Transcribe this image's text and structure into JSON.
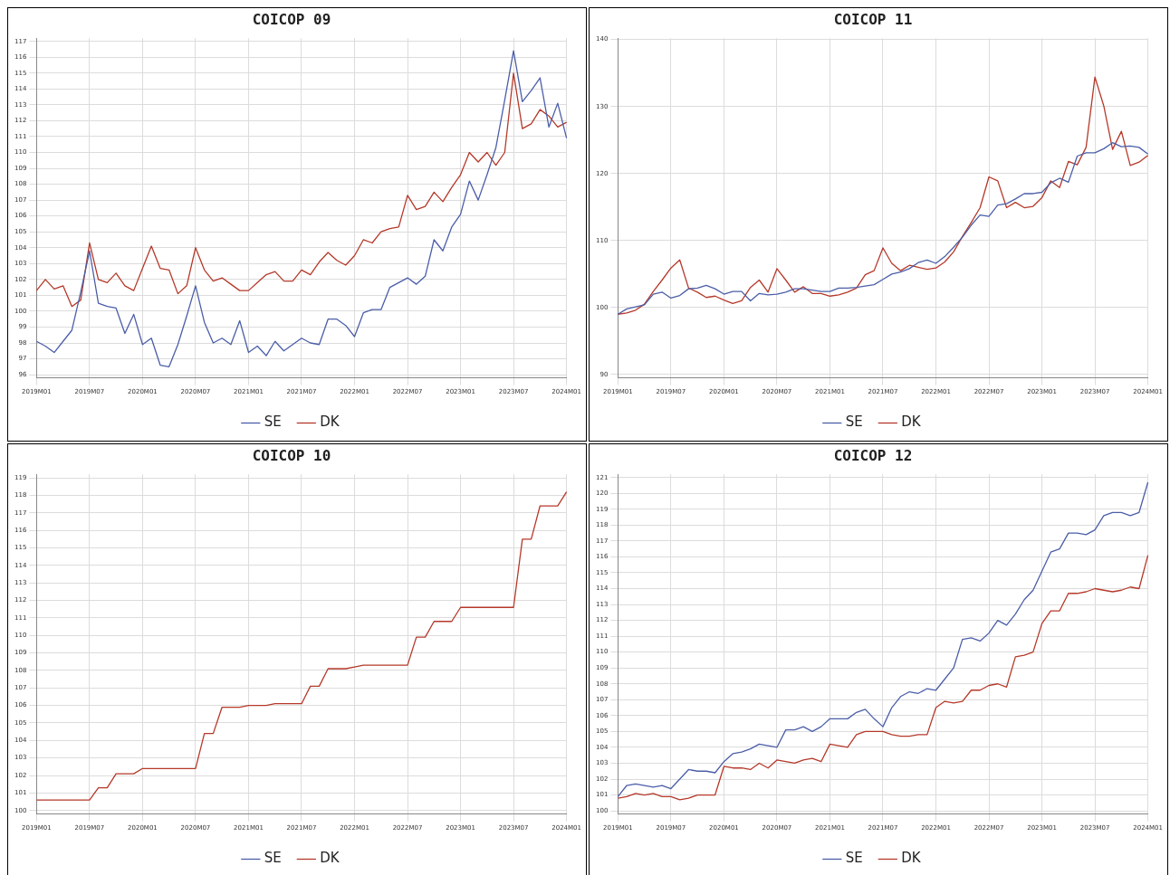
{
  "chart_data": [
    {
      "type": "line",
      "title": "COICOP 09",
      "categories": [
        "2019M01",
        null,
        null,
        null,
        null,
        null,
        "2019M07",
        null,
        null,
        null,
        null,
        null,
        "2020M01",
        null,
        null,
        null,
        null,
        null,
        "2020M07",
        null,
        null,
        null,
        null,
        null,
        "2021M01",
        null,
        null,
        null,
        null,
        null,
        "2021M07",
        null,
        null,
        null,
        null,
        null,
        "2022M01",
        null,
        null,
        null,
        null,
        null,
        "2022M07",
        null,
        null,
        null,
        null,
        null,
        "2023M01",
        null,
        null,
        null,
        null,
        null,
        "2023M07",
        null,
        null,
        null,
        null,
        null,
        "2024M01"
      ],
      "ylim": [
        95.8,
        117.2
      ],
      "yticks": [
        96,
        97,
        98,
        99,
        100,
        101,
        102,
        103,
        104,
        105,
        106,
        107,
        108,
        109,
        110,
        111,
        112,
        113,
        114,
        115,
        116,
        117
      ],
      "grid": true,
      "legend": "bottom",
      "marker": "none",
      "series": [
        {
          "name": "SE",
          "color": "#4b5ea8",
          "values": [
            98.1,
            97.8,
            97.4,
            98.1,
            98.8,
            101.2,
            103.8,
            100.5,
            100.3,
            100.2,
            98.6,
            99.8,
            97.9,
            98.3,
            96.6,
            96.5,
            97.9,
            99.7,
            101.6,
            99.3,
            98.0,
            98.3,
            97.9,
            99.4,
            97.4,
            97.8,
            97.2,
            98.1,
            97.5,
            97.9,
            98.3,
            98.0,
            97.9,
            99.5,
            99.5,
            99.1,
            98.4,
            99.9,
            100.1,
            100.1,
            101.5,
            101.8,
            102.1,
            101.7,
            102.2,
            104.5,
            103.8,
            105.3,
            106.1,
            108.2,
            107.0,
            108.6,
            110.3,
            113.3,
            116.4,
            113.2,
            113.9,
            114.7,
            111.6,
            113.1,
            110.9
          ]
        },
        {
          "name": "DK",
          "color": "#b5392a",
          "values": [
            101.3,
            102.0,
            101.4,
            101.6,
            100.3,
            100.7,
            104.3,
            102.0,
            101.8,
            102.4,
            101.6,
            101.3,
            102.7,
            104.1,
            102.7,
            102.6,
            101.1,
            101.6,
            104.0,
            102.6,
            101.9,
            102.1,
            101.7,
            101.3,
            101.3,
            101.8,
            102.3,
            102.5,
            101.9,
            101.9,
            102.6,
            102.3,
            103.1,
            103.7,
            103.2,
            102.9,
            103.5,
            104.5,
            104.3,
            105.0,
            105.2,
            105.3,
            107.3,
            106.4,
            106.6,
            107.5,
            106.9,
            107.8,
            108.6,
            110.0,
            109.4,
            110.0,
            109.2,
            110.0,
            115.0,
            111.5,
            111.8,
            112.7,
            112.3,
            111.6,
            111.9
          ]
        }
      ]
    },
    {
      "type": "line",
      "title": "COICOP 11",
      "categories": [
        "2019M01",
        null,
        null,
        null,
        null,
        null,
        "2019M07",
        null,
        null,
        null,
        null,
        null,
        "2020M01",
        null,
        null,
        null,
        null,
        null,
        "2020M07",
        null,
        null,
        null,
        null,
        null,
        "2021M01",
        null,
        null,
        null,
        null,
        null,
        "2021M07",
        null,
        null,
        null,
        null,
        null,
        "2022M01",
        null,
        null,
        null,
        null,
        null,
        "2022M07",
        null,
        null,
        null,
        null,
        null,
        "2023M01",
        null,
        null,
        null,
        null,
        null,
        "2023M07",
        null,
        null,
        null,
        null,
        null,
        "2024M01"
      ],
      "ylim": [
        89.5,
        140.2
      ],
      "yticks": [
        90,
        100,
        110,
        120,
        130,
        140
      ],
      "grid": true,
      "legend": "bottom",
      "marker": "none",
      "series": [
        {
          "name": "SE",
          "color": "#4b5ea8",
          "values": [
            99.0,
            99.8,
            100.1,
            100.4,
            102.0,
            102.3,
            101.4,
            101.8,
            102.8,
            102.9,
            103.3,
            102.8,
            102.0,
            102.4,
            102.4,
            101.0,
            102.1,
            101.9,
            102.0,
            102.3,
            102.8,
            102.8,
            102.6,
            102.4,
            102.4,
            102.9,
            102.9,
            103.0,
            103.2,
            103.4,
            104.2,
            105.0,
            105.3,
            105.8,
            106.7,
            107.1,
            106.6,
            107.6,
            109.0,
            110.5,
            112.3,
            113.8,
            113.6,
            115.3,
            115.5,
            116.2,
            117.0,
            117.0,
            117.2,
            118.6,
            119.3,
            118.7,
            122.6,
            123.1,
            123.1,
            123.7,
            124.6,
            124.0,
            124.1,
            123.9,
            122.9
          ]
        },
        {
          "name": "DK",
          "color": "#b5392a",
          "values": [
            99.0,
            99.2,
            99.6,
            100.5,
            102.4,
            104.1,
            105.9,
            107.1,
            102.9,
            102.3,
            101.5,
            101.7,
            101.1,
            100.6,
            101.0,
            103.0,
            104.1,
            102.3,
            105.8,
            104.1,
            102.3,
            103.1,
            102.1,
            102.1,
            101.7,
            101.9,
            102.3,
            102.9,
            104.9,
            105.5,
            108.9,
            106.6,
            105.5,
            106.3,
            106.0,
            105.7,
            105.9,
            106.8,
            108.3,
            110.6,
            112.7,
            114.9,
            119.5,
            118.9,
            114.9,
            115.7,
            114.9,
            115.1,
            116.4,
            118.9,
            117.9,
            121.8,
            121.3,
            123.9,
            134.4,
            130.1,
            123.6,
            126.3,
            121.2,
            121.7,
            122.7
          ]
        }
      ]
    },
    {
      "type": "line",
      "title": "COICOP 10",
      "categories": [
        "2019M01",
        null,
        null,
        null,
        null,
        null,
        "2019M07",
        null,
        null,
        null,
        null,
        null,
        "2020M01",
        null,
        null,
        null,
        null,
        null,
        "2020M07",
        null,
        null,
        null,
        null,
        null,
        "2021M01",
        null,
        null,
        null,
        null,
        null,
        "2021M07",
        null,
        null,
        null,
        null,
        null,
        "2022M01",
        null,
        null,
        null,
        null,
        null,
        "2022M07",
        null,
        null,
        null,
        null,
        null,
        "2023M01",
        null,
        null,
        null,
        null,
        null,
        "2023M07",
        null,
        null,
        null,
        null,
        null,
        "2024M01"
      ],
      "ylim": [
        99.8,
        119.2
      ],
      "yticks": [
        100,
        101,
        102,
        103,
        104,
        105,
        106,
        107,
        108,
        109,
        110,
        111,
        112,
        113,
        114,
        115,
        116,
        117,
        118,
        119
      ],
      "grid": true,
      "legend": "bottom",
      "marker": "none",
      "series": [
        {
          "name": "SE",
          "color": "#4b5ea8",
          "values": [
            null,
            null,
            null,
            null,
            null,
            null,
            null,
            null,
            null,
            null,
            null,
            null,
            null,
            null,
            null,
            null,
            null,
            null,
            null,
            null,
            null,
            null,
            null,
            null,
            null,
            null,
            null,
            null,
            null,
            null,
            null,
            null,
            null,
            null,
            null,
            null,
            null,
            null,
            null,
            null,
            null,
            null,
            null,
            null,
            null,
            null,
            null,
            null,
            null,
            null,
            null,
            null,
            null,
            null,
            null,
            null,
            null,
            null,
            null,
            null,
            null
          ]
        },
        {
          "name": "DK",
          "color": "#b5392a",
          "values": [
            100.6,
            100.6,
            100.6,
            100.6,
            100.6,
            100.6,
            100.6,
            101.3,
            101.3,
            102.1,
            102.1,
            102.1,
            102.4,
            102.4,
            102.4,
            102.4,
            102.4,
            102.4,
            102.4,
            104.4,
            104.4,
            105.9,
            105.9,
            105.9,
            106.0,
            106.0,
            106.0,
            106.1,
            106.1,
            106.1,
            106.1,
            107.1,
            107.1,
            108.1,
            108.1,
            108.1,
            108.2,
            108.3,
            108.3,
            108.3,
            108.3,
            108.3,
            108.3,
            109.9,
            109.9,
            110.8,
            110.8,
            110.8,
            111.6,
            111.6,
            111.6,
            111.6,
            111.6,
            111.6,
            111.6,
            115.5,
            115.5,
            117.4,
            117.4,
            117.4,
            118.2
          ]
        }
      ]
    },
    {
      "type": "line",
      "title": "COICOP 12",
      "categories": [
        "2019M01",
        null,
        null,
        null,
        null,
        null,
        "2019M07",
        null,
        null,
        null,
        null,
        null,
        "2020M01",
        null,
        null,
        null,
        null,
        null,
        "2020M07",
        null,
        null,
        null,
        null,
        null,
        "2021M01",
        null,
        null,
        null,
        null,
        null,
        "2021M07",
        null,
        null,
        null,
        null,
        null,
        "2022M01",
        null,
        null,
        null,
        null,
        null,
        "2022M07",
        null,
        null,
        null,
        null,
        null,
        "2023M01",
        null,
        null,
        null,
        null,
        null,
        "2023M07",
        null,
        null,
        null,
        null,
        null,
        "2024M01"
      ],
      "ylim": [
        99.8,
        121.2
      ],
      "yticks": [
        100,
        101,
        102,
        103,
        104,
        105,
        106,
        107,
        108,
        109,
        110,
        111,
        112,
        113,
        114,
        115,
        116,
        117,
        118,
        119,
        120,
        121
      ],
      "grid": true,
      "legend": "bottom",
      "marker": "none",
      "series": [
        {
          "name": "SE",
          "color": "#4b5ea8",
          "values": [
            100.9,
            101.6,
            101.7,
            101.6,
            101.5,
            101.6,
            101.4,
            102.0,
            102.6,
            102.5,
            102.5,
            102.4,
            103.1,
            103.6,
            103.7,
            103.9,
            104.2,
            104.1,
            104.0,
            105.1,
            105.1,
            105.3,
            105.0,
            105.3,
            105.8,
            105.8,
            105.8,
            106.2,
            106.4,
            105.8,
            105.3,
            106.5,
            107.2,
            107.5,
            107.4,
            107.7,
            107.6,
            108.3,
            109.0,
            110.8,
            110.9,
            110.7,
            111.2,
            112.0,
            111.7,
            112.4,
            113.3,
            113.9,
            115.1,
            116.3,
            116.5,
            117.5,
            117.5,
            117.4,
            117.7,
            118.6,
            118.8,
            118.8,
            118.6,
            118.8,
            120.7
          ]
        },
        {
          "name": "DK",
          "color": "#b5392a",
          "values": [
            100.8,
            100.9,
            101.1,
            101.0,
            101.1,
            100.9,
            100.9,
            100.7,
            100.8,
            101.0,
            101.0,
            101.0,
            102.8,
            102.7,
            102.7,
            102.6,
            103.0,
            102.7,
            103.2,
            103.1,
            103.0,
            103.2,
            103.3,
            103.1,
            104.2,
            104.1,
            104.0,
            104.8,
            105.0,
            105.0,
            105.0,
            104.8,
            104.7,
            104.7,
            104.8,
            104.8,
            106.5,
            106.9,
            106.8,
            106.9,
            107.6,
            107.6,
            107.9,
            108.0,
            107.8,
            109.7,
            109.8,
            110.0,
            111.8,
            112.6,
            112.6,
            113.7,
            113.7,
            113.8,
            114.0,
            113.9,
            113.8,
            113.9,
            114.1,
            114.0,
            116.1
          ]
        }
      ]
    }
  ]
}
